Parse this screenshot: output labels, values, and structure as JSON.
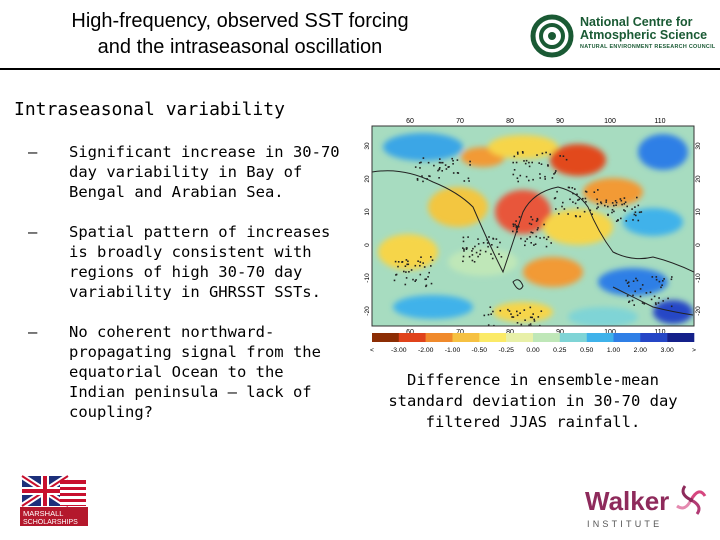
{
  "title": {
    "line1": "High-frequency, observed SST forcing",
    "line2": "and the intraseasonal oscillation"
  },
  "logo_ncas": {
    "line1": "National Centre for",
    "line2": "Atmospheric Science",
    "sub": "NATURAL ENVIRONMENT RESEARCH COUNCIL",
    "color": "#1a5a34"
  },
  "heading": "Intraseasonal variability",
  "bullets": [
    {
      "marker": "–",
      "text": "Significant increase in 30-70 day variability in Bay of Bengal and Arabian Sea."
    },
    {
      "marker": "–",
      "text": "Spatial pattern of increases is broadly consistent with regions of high 30-70 day variability in GHRSST SSTs."
    },
    {
      "marker": "–",
      "text": "No coherent northward-propagating signal from the equatorial Ocean to the Indian peninsula – lack of coupling?"
    }
  ],
  "map": {
    "lon_labels": [
      "60",
      "70",
      "80",
      "90",
      "100",
      "110"
    ],
    "lat_labels_left": [
      "30",
      "20",
      "10",
      "0",
      "-10",
      "-20"
    ],
    "lat_labels_right": [
      "30",
      "20",
      "10",
      "0",
      "-10",
      "-20"
    ],
    "colorbar_labels": [
      "<",
      "-3.00",
      "-2.00",
      "-1.00",
      "-0.50",
      "-0.25",
      "0.00",
      "0.25",
      "0.50",
      "1.00",
      "2.00",
      "3.00",
      ">"
    ],
    "colorbar_colors": [
      "#8c2d04",
      "#e0431b",
      "#f08a2c",
      "#f6c142",
      "#fbea67",
      "#e8f0a8",
      "#bfe7b8",
      "#7fd4d6",
      "#3fb2ea",
      "#2f7fe6",
      "#2546c6",
      "#14208a"
    ]
  },
  "caption": "Difference in ensemble-mean standard deviation in 30-70 day filtered JJAS rainfall.",
  "logo_marshall": {
    "line1": "MARSHALL",
    "line2": "SCHOLARSHIPS"
  },
  "logo_walker": {
    "name": "Walker",
    "sub": "INSTITUTE",
    "color": "#8e2a5b"
  }
}
